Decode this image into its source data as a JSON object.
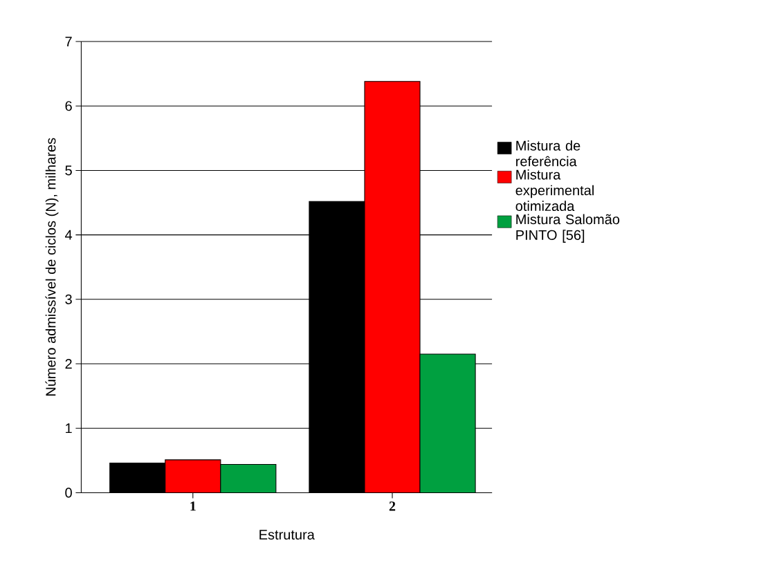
{
  "chart_data": {
    "type": "bar",
    "xlabel": "Estrutura",
    "ylabel": "Número admissível de ciclos (N), milhares",
    "categories": [
      "1",
      "2"
    ],
    "series": [
      {
        "name": "Mistura de referência",
        "color": "#000000",
        "values": [
          0.46,
          4.52
        ]
      },
      {
        "name": "Mistura experimental otimizada",
        "color": "#ff0000",
        "values": [
          0.51,
          6.38
        ]
      },
      {
        "name": "Mistura Salomão PINTO [56]",
        "color": "#00a040",
        "values": [
          0.44,
          2.15
        ]
      }
    ],
    "ylim": [
      0,
      7
    ],
    "yticks": [
      0,
      1,
      2,
      3,
      4,
      5,
      6,
      7
    ],
    "grid": "y",
    "legend": "right"
  }
}
